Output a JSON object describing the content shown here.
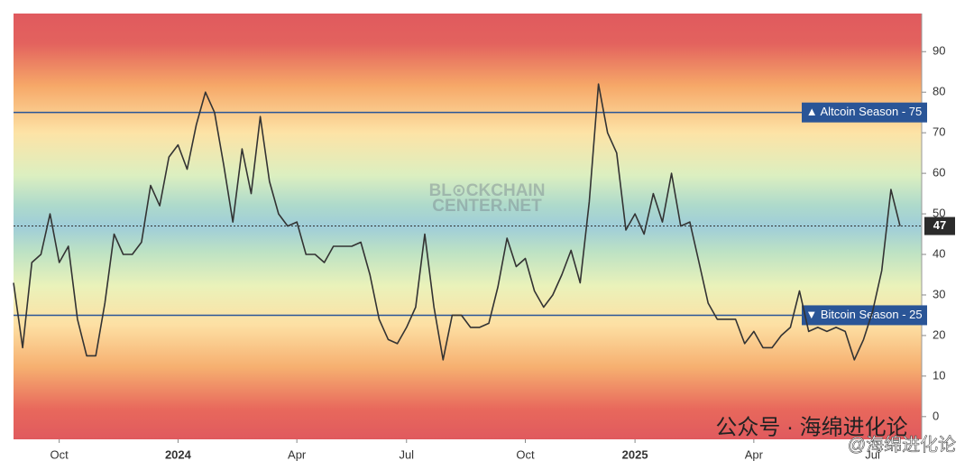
{
  "chart_data": {
    "type": "line",
    "categories": [
      null,
      null,
      null,
      null,
      null,
      "Oct",
      null,
      null,
      null,
      null,
      null,
      null,
      null,
      null,
      null,
      null,
      null,
      null,
      "2024",
      null,
      null,
      null,
      null,
      null,
      null,
      null,
      null,
      null,
      null,
      null,
      null,
      "Apr",
      null,
      null,
      null,
      null,
      null,
      null,
      null,
      null,
      null,
      null,
      null,
      "Jul",
      null,
      null,
      null,
      null,
      null,
      null,
      null,
      null,
      null,
      null,
      null,
      null,
      "Oct",
      null,
      null,
      null,
      null,
      null,
      null,
      null,
      null,
      null,
      null,
      null,
      "2025",
      null,
      null,
      null,
      null,
      null,
      null,
      null,
      null,
      null,
      null,
      null,
      null,
      "Apr",
      null,
      null,
      null,
      null,
      null,
      null,
      null,
      null,
      null,
      null,
      null,
      null,
      "Jul",
      null,
      null,
      null
    ],
    "values": [
      33,
      17,
      38,
      40,
      50,
      38,
      42,
      24,
      15,
      15,
      28,
      45,
      40,
      40,
      43,
      57,
      52,
      64,
      67,
      61,
      72,
      80,
      75,
      62,
      48,
      66,
      55,
      74,
      58,
      50,
      47,
      48,
      40,
      40,
      38,
      42,
      42,
      42,
      43,
      35,
      24,
      19,
      18,
      22,
      27,
      45,
      27,
      14,
      25,
      25,
      22,
      22,
      23,
      32,
      44,
      37,
      39,
      31,
      27,
      30,
      35,
      41,
      33,
      53,
      82,
      70,
      65,
      46,
      50,
      45,
      55,
      48,
      60,
      47,
      48,
      38,
      28,
      24,
      24,
      24,
      18,
      21,
      17,
      17,
      20,
      22,
      31,
      21,
      22,
      21,
      22,
      21,
      14,
      19,
      26,
      36,
      56,
      47
    ],
    "color": "#333333",
    "ylim": [
      -5.6,
      99.4
    ],
    "yticks": [
      0,
      10,
      20,
      30,
      40,
      50,
      60,
      70,
      80,
      90
    ],
    "annotations": [
      {
        "value": 75,
        "label": "▲ Altcoin Season - 75"
      },
      {
        "value": 25,
        "label": "▼ Bitcoin Season - 25"
      }
    ],
    "watermark": [
      "BL⊙CKCHAIN",
      "CENTER.NET"
    ],
    "footer_watermark": [
      "公众号 · 海绵进化论",
      "@海绵进化论"
    ]
  }
}
